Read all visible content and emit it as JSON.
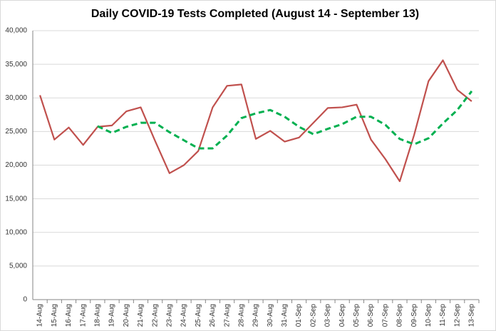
{
  "chart_data": {
    "type": "line",
    "title": "Daily COVID-19 Tests Completed (August 14 - September 13)",
    "categories": [
      "14-Aug",
      "15-Aug",
      "16-Aug",
      "17-Aug",
      "18-Aug",
      "19-Aug",
      "20-Aug",
      "21-Aug",
      "22-Aug",
      "23-Aug",
      "24-Aug",
      "25-Aug",
      "26-Aug",
      "27-Aug",
      "28-Aug",
      "29-Aug",
      "30-Aug",
      "31-Aug",
      "01-Sep",
      "02-Sep",
      "03-Sep",
      "04-Sep",
      "05-Sep",
      "06-Sep",
      "07-Sep",
      "08-Sep",
      "09-Sep",
      "10-Sep",
      "11-Sep",
      "12-Sep",
      "13-Sep"
    ],
    "series": [
      {
        "color": "#c0504d",
        "dashed": false,
        "values": [
          30400,
          23800,
          25600,
          23000,
          25700,
          25900,
          28000,
          28600,
          23600,
          18800,
          20000,
          22100,
          28600,
          31800,
          32000,
          23900,
          25100,
          23500,
          24100,
          26300,
          28500,
          28600,
          29000,
          23800,
          20900,
          17600,
          24500,
          32500,
          35600,
          31200,
          29500
        ]
      },
      {
        "color": "#00b050",
        "dashed": true,
        "values": [
          null,
          null,
          null,
          null,
          25800,
          24800,
          25700,
          26300,
          26300,
          24900,
          23700,
          22500,
          22500,
          24400,
          27000,
          27700,
          28200,
          27200,
          25700,
          24600,
          25400,
          26100,
          27200,
          27200,
          26000,
          23900,
          23100,
          24000,
          26200,
          28200,
          31000
        ]
      }
    ],
    "ylim": [
      0,
      40000
    ],
    "yticks": [
      0,
      {
        "value": 5000,
        "label": "5,000"
      },
      {
        "value": 10000,
        "label": "10,000"
      },
      {
        "value": 15000,
        "label": "15,000"
      },
      {
        "value": 20000,
        "label": "20,000"
      },
      {
        "value": 25000,
        "label": "25,000"
      },
      {
        "value": 30000,
        "label": "30,000"
      },
      {
        "value": 35000,
        "label": "35,000"
      },
      {
        "value": 40000,
        "label": "40,000"
      }
    ],
    "grid": true
  }
}
